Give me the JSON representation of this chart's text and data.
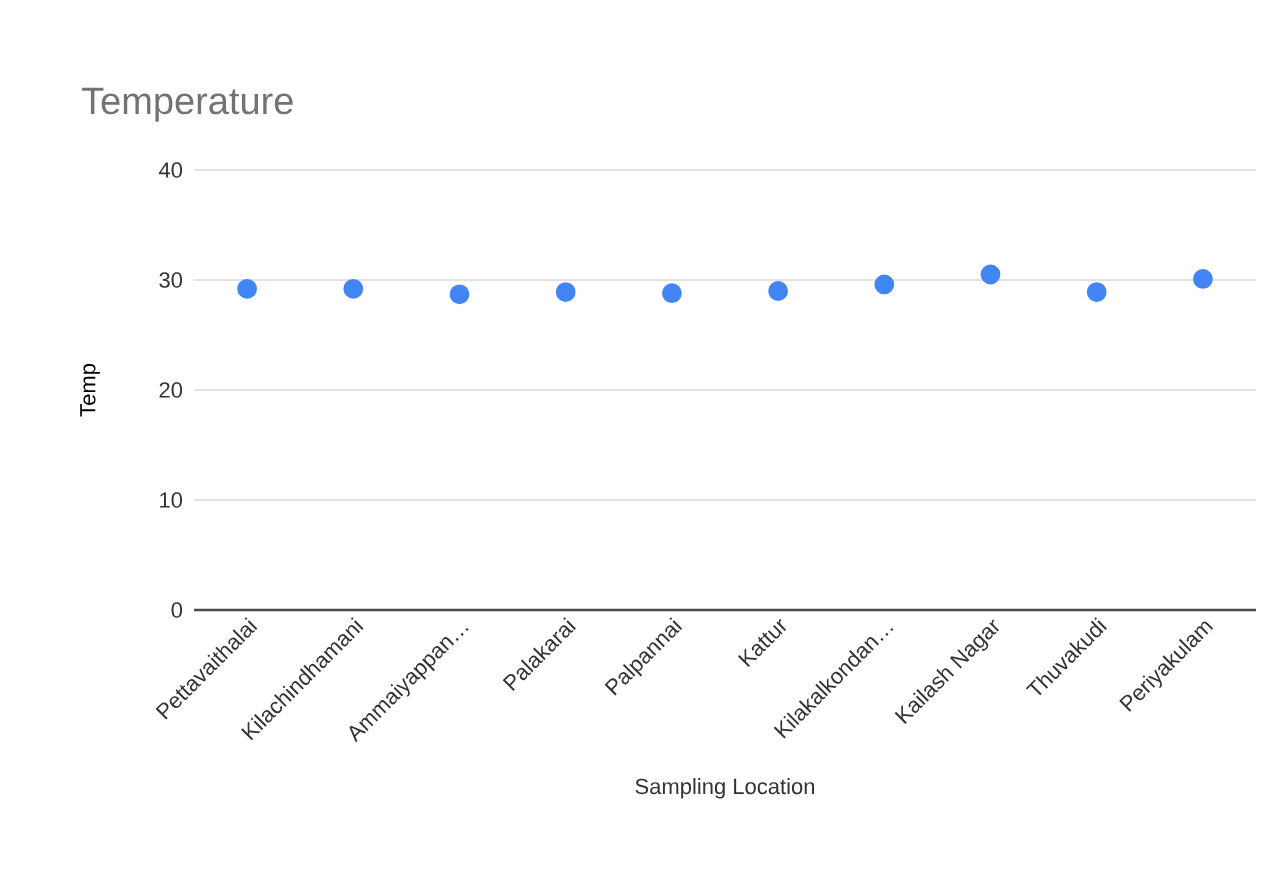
{
  "chart_data": {
    "type": "scatter",
    "title": "Temperature",
    "xlabel": "Sampling Location",
    "ylabel": "Temp",
    "categories": [
      "Pettavaithalai",
      "Kilachindhamani",
      "Ammaiyappan…",
      "Palakarai",
      "Palpannai",
      "Kattur",
      "Kilakalkondan…",
      "Kailash Nagar",
      "Thuvakudi",
      "Periyakulam"
    ],
    "series": [
      {
        "color": "#4285f4",
        "values": [
          29.2,
          29.2,
          28.7,
          28.9,
          28.8,
          29.0,
          29.6,
          30.5,
          28.9,
          30.1
        ]
      }
    ],
    "ylim": [
      0,
      40
    ],
    "yticks": [
      0,
      10,
      20,
      30,
      40
    ],
    "grid": "y",
    "marker": "circle"
  }
}
